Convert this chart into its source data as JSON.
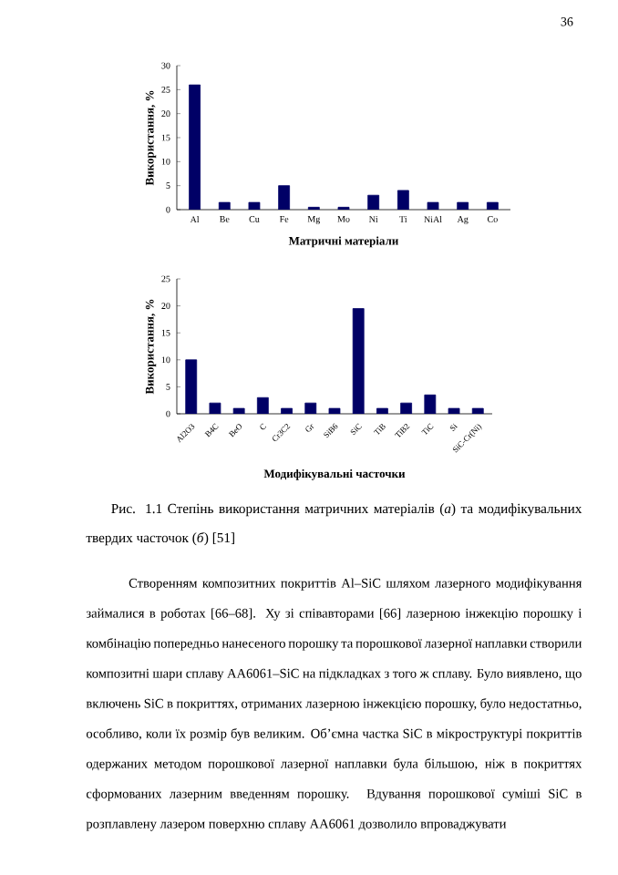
{
  "chart_data": [
    {
      "type": "bar",
      "xlabel": "Матричні матеріали",
      "ylabel": "Використання, %",
      "color": "#000066",
      "categories": [
        "Al",
        "Be",
        "Cu",
        "Fe",
        "Mg",
        "Mo",
        "Ni",
        "Ti",
        "NiAl",
        "Ag",
        "Co"
      ],
      "values": [
        26,
        1.5,
        1.5,
        5,
        0.5,
        0.5,
        3,
        4,
        1.5,
        1.5,
        1.5
      ],
      "ylim": [
        0,
        30
      ],
      "yticks": [
        0,
        5,
        10,
        15,
        20,
        25,
        30
      ],
      "annotations": [
        "36"
      ]
    },
    {
      "type": "bar",
      "xlabel": "Модифікувальні часточки",
      "ylabel": "Використання, %",
      "color": "#000066",
      "categories": [
        "Al2O3",
        "B4C",
        "BeO",
        "C",
        "Cr3C2",
        "Gr",
        "SiB6",
        "SiC",
        "TiB",
        "TiB2",
        "TiC",
        "Si",
        "SiC-Cr(Ni)"
      ],
      "values": [
        10,
        2,
        1,
        3,
        1,
        2,
        1,
        19.5,
        1,
        2,
        3.5,
        1,
        1
      ],
      "ylim": [
        0,
        25
      ],
      "yticks": [
        0,
        5,
        10,
        15,
        20,
        25
      ],
      "annotations": [
        "Рис. 1.1 Степінь використання матричних матеріалів (*а*) та модифікувальних твердих часточок (*б*) [51]",
        "Створенням композитних покриттів Al–SiC шляхом лазерного модифікування займалися в роботах [66–68]. Ху зі співавторами [66] лазерною інжекцію порошку і комбінацію попередньо нанесеного порошку та порошкової лазерної наплавки створили композитні шари сплаву AA6061–SiC на підкладках з того ж сплаву. Було виявлено, що включень SiC в покриттях, отриманих лазерною інжекцією порошку, було недостатньо, особливо, коли їх розмір був великим. Об’ємна частка SiC в мікроструктурі покриттів одержаних методом порошкової лазерної наплавки була більшою, ніж в покриттях сформованих лазерним введенням порошку. Вдування порошкової суміші SiC в розплавлену лазером поверхню сплаву AA6061 дозволило впроваджувати"
      ]
    }
  ]
}
